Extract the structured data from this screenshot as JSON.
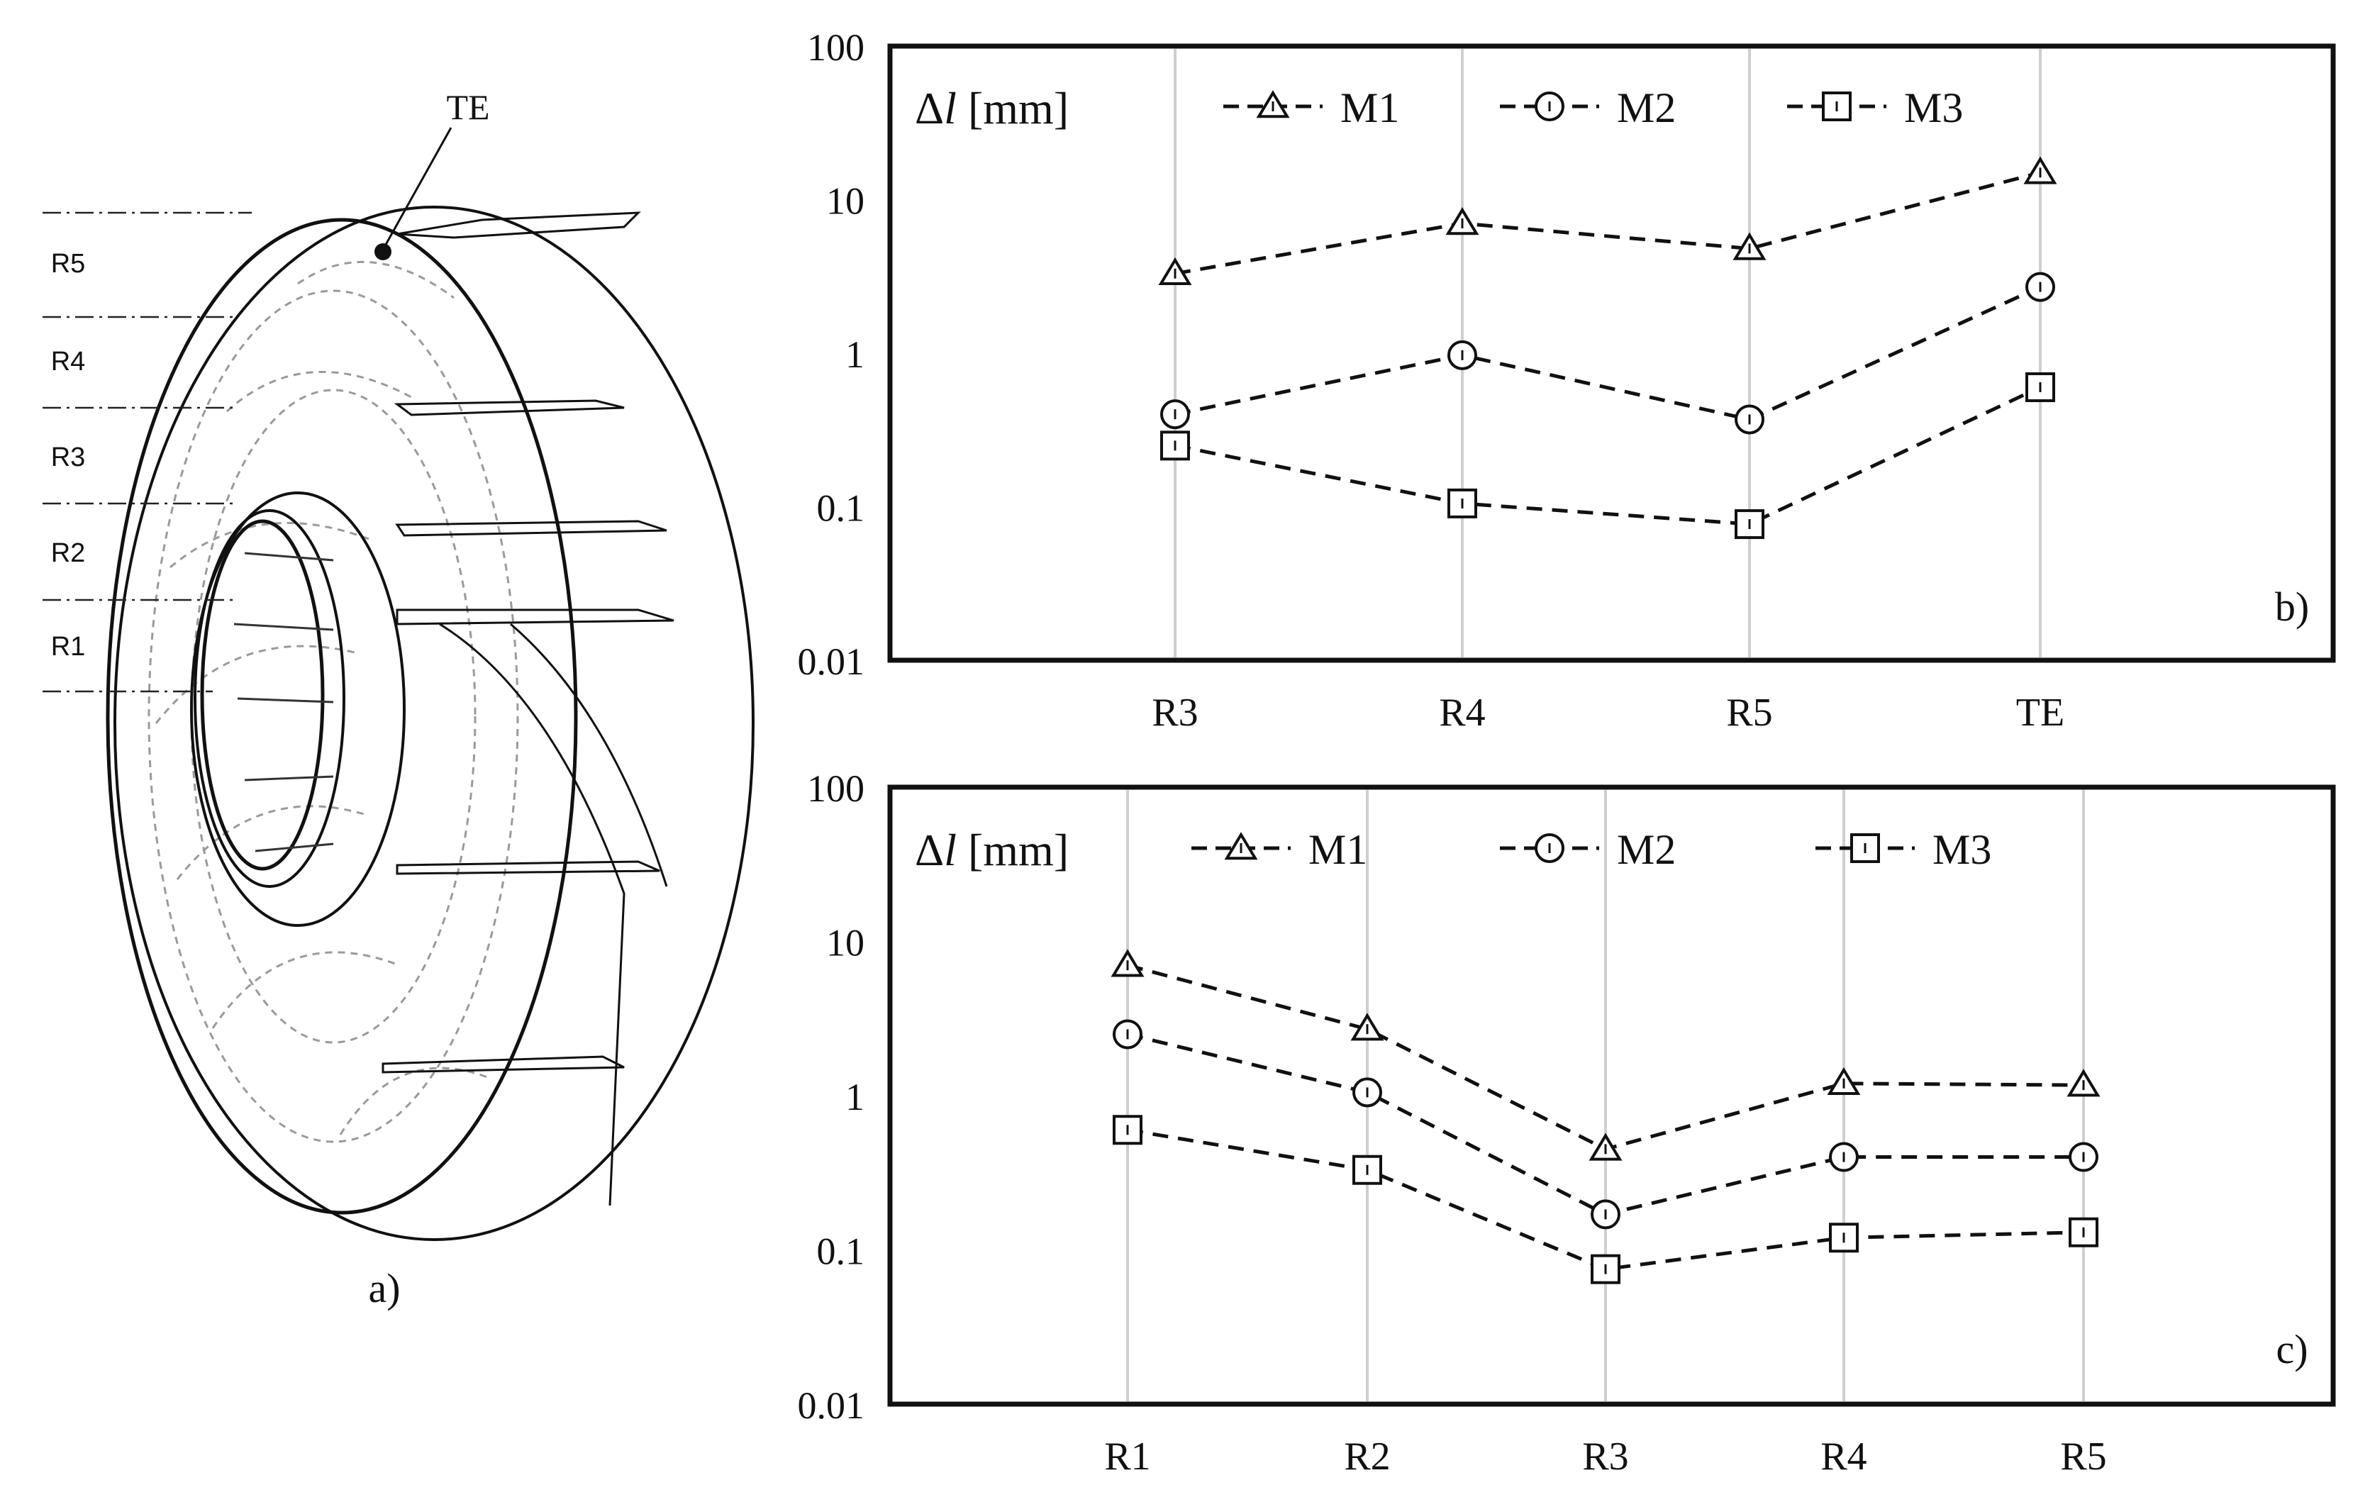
{
  "panel_a": {
    "label": "a)",
    "te_label": "TE",
    "radius_labels": [
      "R5",
      "R4",
      "R3",
      "R2",
      "R1"
    ]
  },
  "chart_data": [
    {
      "type": "line",
      "panel_label": "b)",
      "ylabel": "Δl [mm]",
      "yscale": "log",
      "ylim": [
        0.01,
        100
      ],
      "yticks": [
        "100",
        "10",
        "1",
        "0.1",
        "0.01"
      ],
      "categories": [
        "R3",
        "R4",
        "R5",
        "TE"
      ],
      "grid": "vertical",
      "legend_position": "top",
      "series": [
        {
          "name": "M1",
          "marker": "triangle",
          "values": [
            3.3,
            7.0,
            4.8,
            15.0
          ]
        },
        {
          "name": "M2",
          "marker": "circle",
          "values": [
            0.4,
            0.97,
            0.37,
            2.7
          ]
        },
        {
          "name": "M3",
          "marker": "square",
          "values": [
            0.25,
            0.105,
            0.077,
            0.6
          ]
        }
      ]
    },
    {
      "type": "line",
      "panel_label": "c)",
      "ylabel": "Δl [mm]",
      "yscale": "log",
      "ylim": [
        0.01,
        100
      ],
      "yticks": [
        "100",
        "10",
        "1",
        "0.1",
        "0.01"
      ],
      "categories": [
        "R1",
        "R2",
        "R3",
        "R4",
        "R5"
      ],
      "grid": "vertical",
      "legend_position": "top",
      "series": [
        {
          "name": "M1",
          "marker": "triangle",
          "values": [
            7.0,
            2.7,
            0.45,
            1.2,
            1.17
          ]
        },
        {
          "name": "M2",
          "marker": "circle",
          "values": [
            2.5,
            1.05,
            0.17,
            0.4,
            0.4
          ]
        },
        {
          "name": "M3",
          "marker": "square",
          "values": [
            0.6,
            0.33,
            0.075,
            0.12,
            0.13
          ]
        }
      ]
    }
  ]
}
